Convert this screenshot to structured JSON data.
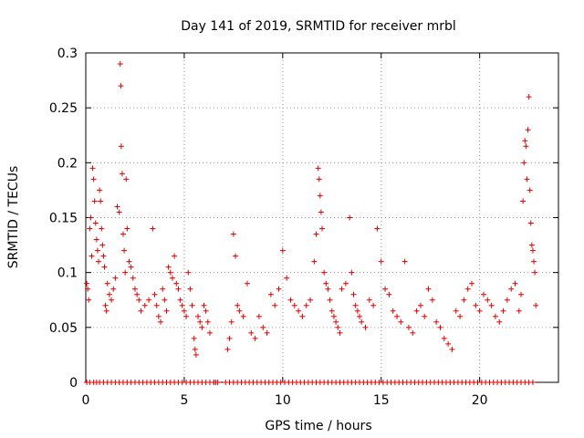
{
  "chart_data": {
    "type": "scatter",
    "title": "Day 141 of 2019, SRMTID for receiver mrbl",
    "xlabel": "GPS time / hours",
    "ylabel": "SRMTID / TECUs",
    "xlim": [
      0,
      24
    ],
    "ylim": [
      0,
      0.3
    ],
    "x_ticks": [
      0,
      5,
      10,
      15,
      20
    ],
    "x_tick_labels": [
      "0",
      "5",
      "10",
      "15",
      "20"
    ],
    "y_ticks": [
      0,
      0.05,
      0.1,
      0.15,
      0.2,
      0.25,
      0.3
    ],
    "y_tick_labels": [
      "0",
      "0.05",
      "0.1",
      "0.15",
      "0.2",
      "0.25",
      "0.3"
    ],
    "grid": true,
    "marker": "+",
    "marker_color": "#e00000",
    "series": [
      {
        "name": "SRMTID",
        "points": [
          [
            0.05,
            0.09
          ],
          [
            0.1,
            0.085
          ],
          [
            0.15,
            0.075
          ],
          [
            0.2,
            0.14
          ],
          [
            0.25,
            0.15
          ],
          [
            0.3,
            0.115
          ],
          [
            0.35,
            0.195
          ],
          [
            0.4,
            0.185
          ],
          [
            0.45,
            0.165
          ],
          [
            0.5,
            0.145
          ],
          [
            0.55,
            0.13
          ],
          [
            0.6,
            0.12
          ],
          [
            0.65,
            0.11
          ],
          [
            0.7,
            0.175
          ],
          [
            0.75,
            0.165
          ],
          [
            0.8,
            0.14
          ],
          [
            0.85,
            0.125
          ],
          [
            0.9,
            0.115
          ],
          [
            0.95,
            0.105
          ],
          [
            1.0,
            0.07
          ],
          [
            1.05,
            0.065
          ],
          [
            1.1,
            0.09
          ],
          [
            1.2,
            0.08
          ],
          [
            1.3,
            0.075
          ],
          [
            1.4,
            0.085
          ],
          [
            1.5,
            0.095
          ],
          [
            1.6,
            0.16
          ],
          [
            1.7,
            0.155
          ],
          [
            1.75,
            0.29
          ],
          [
            1.78,
            0.27
          ],
          [
            1.8,
            0.215
          ],
          [
            1.85,
            0.19
          ],
          [
            1.9,
            0.135
          ],
          [
            1.95,
            0.12
          ],
          [
            2.0,
            0.1
          ],
          [
            2.05,
            0.185
          ],
          [
            2.1,
            0.14
          ],
          [
            2.2,
            0.11
          ],
          [
            2.3,
            0.105
          ],
          [
            2.4,
            0.095
          ],
          [
            2.5,
            0.085
          ],
          [
            2.6,
            0.08
          ],
          [
            2.7,
            0.075
          ],
          [
            2.8,
            0.065
          ],
          [
            3.0,
            0.07
          ],
          [
            3.2,
            0.075
          ],
          [
            3.4,
            0.14
          ],
          [
            3.5,
            0.08
          ],
          [
            3.6,
            0.07
          ],
          [
            3.7,
            0.06
          ],
          [
            3.8,
            0.055
          ],
          [
            3.9,
            0.085
          ],
          [
            4.0,
            0.075
          ],
          [
            4.1,
            0.065
          ],
          [
            4.2,
            0.105
          ],
          [
            4.3,
            0.1
          ],
          [
            4.4,
            0.095
          ],
          [
            4.5,
            0.115
          ],
          [
            4.6,
            0.09
          ],
          [
            4.7,
            0.085
          ],
          [
            4.8,
            0.075
          ],
          [
            4.9,
            0.07
          ],
          [
            5.0,
            0.065
          ],
          [
            5.1,
            0.06
          ],
          [
            5.2,
            0.1
          ],
          [
            5.3,
            0.085
          ],
          [
            5.4,
            0.07
          ],
          [
            5.5,
            0.04
          ],
          [
            5.55,
            0.03
          ],
          [
            5.6,
            0.025
          ],
          [
            5.7,
            0.06
          ],
          [
            5.8,
            0.055
          ],
          [
            5.9,
            0.05
          ],
          [
            6.0,
            0.07
          ],
          [
            6.1,
            0.065
          ],
          [
            6.2,
            0.055
          ],
          [
            6.3,
            0.045
          ],
          [
            6.5,
            0.0
          ],
          [
            7.2,
            0.03
          ],
          [
            7.3,
            0.04
          ],
          [
            7.4,
            0.055
          ],
          [
            7.5,
            0.135
          ],
          [
            7.6,
            0.115
          ],
          [
            7.7,
            0.07
          ],
          [
            7.8,
            0.065
          ],
          [
            8.0,
            0.06
          ],
          [
            8.2,
            0.09
          ],
          [
            8.4,
            0.045
          ],
          [
            8.6,
            0.04
          ],
          [
            8.8,
            0.06
          ],
          [
            9.0,
            0.05
          ],
          [
            9.2,
            0.045
          ],
          [
            9.4,
            0.08
          ],
          [
            9.6,
            0.07
          ],
          [
            9.8,
            0.085
          ],
          [
            10.0,
            0.12
          ],
          [
            10.2,
            0.095
          ],
          [
            10.4,
            0.075
          ],
          [
            10.6,
            0.07
          ],
          [
            10.8,
            0.065
          ],
          [
            11.0,
            0.06
          ],
          [
            11.2,
            0.07
          ],
          [
            11.4,
            0.075
          ],
          [
            11.6,
            0.11
          ],
          [
            11.7,
            0.135
          ],
          [
            11.8,
            0.195
          ],
          [
            11.85,
            0.185
          ],
          [
            11.9,
            0.17
          ],
          [
            11.95,
            0.155
          ],
          [
            12.0,
            0.14
          ],
          [
            12.1,
            0.1
          ],
          [
            12.2,
            0.09
          ],
          [
            12.3,
            0.085
          ],
          [
            12.4,
            0.075
          ],
          [
            12.5,
            0.065
          ],
          [
            12.6,
            0.06
          ],
          [
            12.7,
            0.055
          ],
          [
            12.8,
            0.05
          ],
          [
            12.9,
            0.045
          ],
          [
            13.0,
            0.085
          ],
          [
            13.2,
            0.09
          ],
          [
            13.4,
            0.15
          ],
          [
            13.5,
            0.1
          ],
          [
            13.6,
            0.08
          ],
          [
            13.7,
            0.07
          ],
          [
            13.8,
            0.065
          ],
          [
            13.9,
            0.06
          ],
          [
            14.0,
            0.055
          ],
          [
            14.2,
            0.05
          ],
          [
            14.4,
            0.075
          ],
          [
            14.6,
            0.07
          ],
          [
            14.8,
            0.14
          ],
          [
            15.0,
            0.11
          ],
          [
            15.2,
            0.085
          ],
          [
            15.4,
            0.08
          ],
          [
            15.6,
            0.065
          ],
          [
            15.8,
            0.06
          ],
          [
            16.0,
            0.055
          ],
          [
            16.2,
            0.11
          ],
          [
            16.4,
            0.05
          ],
          [
            16.6,
            0.045
          ],
          [
            16.8,
            0.065
          ],
          [
            17.0,
            0.07
          ],
          [
            17.2,
            0.06
          ],
          [
            17.4,
            0.085
          ],
          [
            17.6,
            0.075
          ],
          [
            17.8,
            0.055
          ],
          [
            18.0,
            0.05
          ],
          [
            18.2,
            0.04
          ],
          [
            18.4,
            0.035
          ],
          [
            18.6,
            0.03
          ],
          [
            18.8,
            0.065
          ],
          [
            19.0,
            0.06
          ],
          [
            19.2,
            0.075
          ],
          [
            19.4,
            0.085
          ],
          [
            19.6,
            0.09
          ],
          [
            19.8,
            0.07
          ],
          [
            20.0,
            0.065
          ],
          [
            20.2,
            0.08
          ],
          [
            20.4,
            0.075
          ],
          [
            20.6,
            0.07
          ],
          [
            20.8,
            0.06
          ],
          [
            21.0,
            0.055
          ],
          [
            21.2,
            0.065
          ],
          [
            21.4,
            0.075
          ],
          [
            21.6,
            0.085
          ],
          [
            21.8,
            0.09
          ],
          [
            22.0,
            0.065
          ],
          [
            22.1,
            0.08
          ],
          [
            22.2,
            0.165
          ],
          [
            22.25,
            0.2
          ],
          [
            22.3,
            0.22
          ],
          [
            22.35,
            0.215
          ],
          [
            22.4,
            0.185
          ],
          [
            22.45,
            0.23
          ],
          [
            22.5,
            0.26
          ],
          [
            22.55,
            0.175
          ],
          [
            22.6,
            0.145
          ],
          [
            22.65,
            0.125
          ],
          [
            22.7,
            0.12
          ],
          [
            22.75,
            0.11
          ],
          [
            22.8,
            0.1
          ],
          [
            22.85,
            0.07
          ]
        ],
        "zero_points_x": [
          0.05,
          0.2,
          0.4,
          0.55,
          0.7,
          0.9,
          1.1,
          1.3,
          1.5,
          1.7,
          1.9,
          2.1,
          2.3,
          2.5,
          2.7,
          2.9,
          3.1,
          3.3,
          3.5,
          3.7,
          3.9,
          4.1,
          4.3,
          4.5,
          4.7,
          4.9,
          5.1,
          5.3,
          5.5,
          5.7,
          5.9,
          6.1,
          6.3,
          6.5,
          6.6,
          6.7,
          7.1,
          7.3,
          7.5,
          7.7,
          7.9,
          8.1,
          8.3,
          8.5,
          8.7,
          8.9,
          9.1,
          9.3,
          9.5,
          9.7,
          9.9,
          10.1,
          10.3,
          10.5,
          10.7,
          10.9,
          11.1,
          11.3,
          11.5,
          11.7,
          11.9,
          12.1,
          12.3,
          12.5,
          12.7,
          12.9,
          13.1,
          13.3,
          13.5,
          13.7,
          13.9,
          14.1,
          14.3,
          14.5,
          14.7,
          14.9,
          15.1,
          15.3,
          15.5,
          15.7,
          15.9,
          16.1,
          16.3,
          16.5,
          16.7,
          16.9,
          17.1,
          17.3,
          17.5,
          17.7,
          17.9,
          18.1,
          18.3,
          18.5,
          18.7,
          18.9,
          19.1,
          19.3,
          19.5,
          19.7,
          19.9,
          20.1,
          20.3,
          20.5,
          20.7,
          20.9,
          21.1,
          21.3,
          21.5,
          21.7,
          21.9,
          22.1,
          22.3,
          22.5,
          22.7
        ]
      }
    ]
  }
}
